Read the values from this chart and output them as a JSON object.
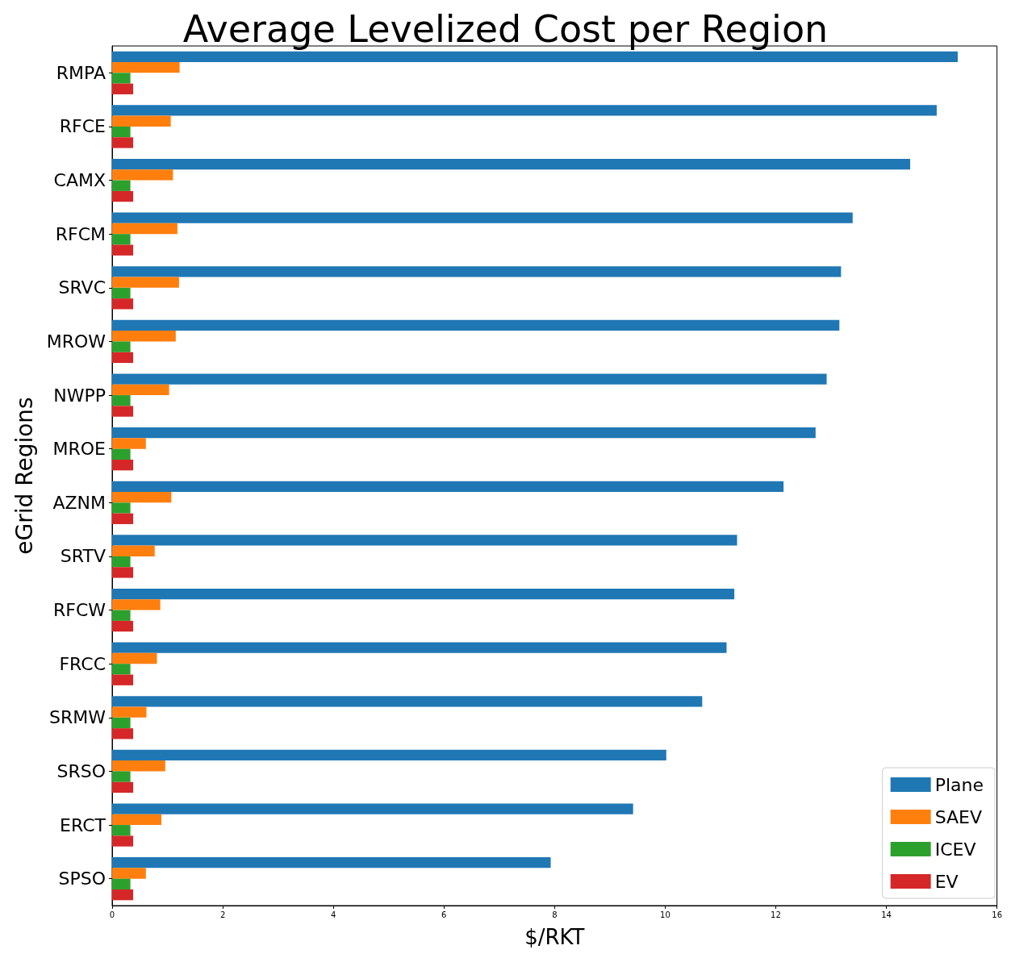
{
  "chart_data": {
    "type": "bar",
    "orientation": "horizontal",
    "title": "Average Levelized Cost per Region",
    "xlabel": "$/RKT",
    "ylabel": "eGrid Regions",
    "categories": [
      "RMPA",
      "RFCE",
      "CAMX",
      "RFCM",
      "SRVC",
      "MROW",
      "NWPP",
      "MROE",
      "AZNM",
      "SRTV",
      "RFCW",
      "FRCC",
      "SRMW",
      "SRSO",
      "ERCT",
      "SPSO"
    ],
    "series": [
      {
        "name": "Plane",
        "color": "#1f77b4",
        "values": [
          15.29,
          14.91,
          14.43,
          13.39,
          13.18,
          13.15,
          12.92,
          12.72,
          12.14,
          11.3,
          11.25,
          11.11,
          10.67,
          10.02,
          9.42,
          7.93
        ]
      },
      {
        "name": "SAEV",
        "color": "#ff7f0e",
        "values": [
          1.22,
          1.06,
          1.1,
          1.18,
          1.21,
          1.15,
          1.03,
          0.61,
          1.07,
          0.77,
          0.87,
          0.81,
          0.62,
          0.96,
          0.89,
          0.61
        ]
      },
      {
        "name": "ICEV",
        "color": "#2ca02c",
        "values": [
          0.33,
          0.33,
          0.33,
          0.33,
          0.33,
          0.33,
          0.33,
          0.33,
          0.33,
          0.33,
          0.33,
          0.33,
          0.33,
          0.33,
          0.33,
          0.33
        ]
      },
      {
        "name": "EV",
        "color": "#d62728",
        "values": [
          0.38,
          0.38,
          0.38,
          0.38,
          0.38,
          0.38,
          0.38,
          0.38,
          0.38,
          0.38,
          0.38,
          0.38,
          0.38,
          0.38,
          0.38,
          0.38
        ]
      }
    ],
    "xlim": [
      0,
      16
    ],
    "xticks": [
      0,
      2,
      4,
      6,
      8,
      10,
      12,
      14,
      16
    ],
    "grid": false,
    "legend": "bottom right"
  }
}
